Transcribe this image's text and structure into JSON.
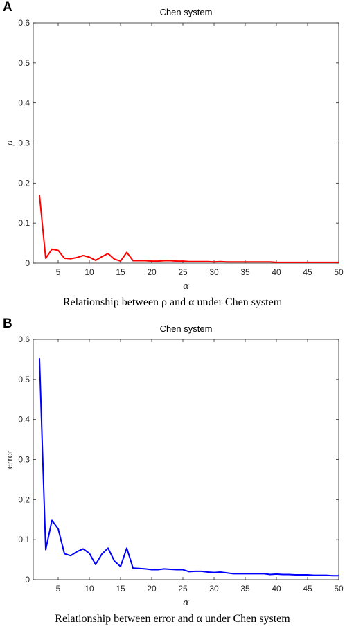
{
  "chart_data": [
    {
      "panel": "A",
      "type": "line",
      "title": "Chen system",
      "xlabel": "α",
      "ylabel": "ρ",
      "caption": "Relationship between ρ and α under Chen system",
      "xlim": [
        1,
        50
      ],
      "ylim": [
        0,
        0.6
      ],
      "xticks": [
        "5",
        "10",
        "15",
        "20",
        "25",
        "30",
        "35",
        "40",
        "45",
        "50"
      ],
      "xtick_values": [
        5,
        10,
        15,
        20,
        25,
        30,
        35,
        40,
        45,
        50
      ],
      "yticks": [
        "0",
        "0.1",
        "0.2",
        "0.3",
        "0.4",
        "0.5",
        "0.6"
      ],
      "ytick_values": [
        0,
        0.1,
        0.2,
        0.3,
        0.4,
        0.5,
        0.6
      ],
      "grid": false,
      "color": "#ff0000",
      "series": [
        {
          "x": [
            2,
            3,
            4,
            5,
            6,
            7,
            8,
            9,
            10,
            11,
            12,
            13,
            14,
            15,
            16,
            17,
            18,
            19,
            20,
            21,
            22,
            23,
            24,
            25,
            26,
            27,
            28,
            29,
            30,
            31,
            32,
            33,
            34,
            35,
            36,
            37,
            38,
            39,
            40,
            41,
            42,
            43,
            44,
            45,
            46,
            47,
            48,
            49,
            50
          ],
          "values": [
            0.17,
            0.012,
            0.035,
            0.032,
            0.012,
            0.011,
            0.014,
            0.019,
            0.015,
            0.007,
            0.016,
            0.024,
            0.01,
            0.005,
            0.027,
            0.006,
            0.006,
            0.006,
            0.005,
            0.005,
            0.006,
            0.006,
            0.005,
            0.005,
            0.004,
            0.004,
            0.004,
            0.004,
            0.003,
            0.004,
            0.003,
            0.003,
            0.003,
            0.003,
            0.003,
            0.003,
            0.003,
            0.003,
            0.002,
            0.002,
            0.002,
            0.002,
            0.002,
            0.002,
            0.002,
            0.002,
            0.002,
            0.002,
            0.002
          ]
        }
      ]
    },
    {
      "panel": "B",
      "type": "line",
      "title": "Chen system",
      "xlabel": "α",
      "ylabel": "error",
      "caption": "Relationship between error and α under Chen system",
      "xlim": [
        1,
        50
      ],
      "ylim": [
        0,
        0.6
      ],
      "xticks": [
        "5",
        "10",
        "15",
        "20",
        "25",
        "30",
        "35",
        "40",
        "45",
        "50"
      ],
      "xtick_values": [
        5,
        10,
        15,
        20,
        25,
        30,
        35,
        40,
        45,
        50
      ],
      "yticks": [
        "0",
        "0.1",
        "0.2",
        "0.3",
        "0.4",
        "0.5",
        "0.6"
      ],
      "ytick_values": [
        0,
        0.1,
        0.2,
        0.3,
        0.4,
        0.5,
        0.6
      ],
      "grid": false,
      "color": "#0000ff",
      "series": [
        {
          "x": [
            2,
            3,
            4,
            5,
            6,
            7,
            8,
            9,
            10,
            11,
            12,
            13,
            14,
            15,
            16,
            17,
            18,
            19,
            20,
            21,
            22,
            23,
            24,
            25,
            26,
            27,
            28,
            29,
            30,
            31,
            32,
            33,
            34,
            35,
            36,
            37,
            38,
            39,
            40,
            41,
            42,
            43,
            44,
            45,
            46,
            47,
            48,
            49,
            50
          ],
          "values": [
            0.553,
            0.075,
            0.148,
            0.127,
            0.065,
            0.06,
            0.07,
            0.077,
            0.066,
            0.038,
            0.064,
            0.079,
            0.047,
            0.033,
            0.079,
            0.029,
            0.028,
            0.027,
            0.025,
            0.025,
            0.027,
            0.026,
            0.025,
            0.025,
            0.02,
            0.021,
            0.021,
            0.019,
            0.018,
            0.019,
            0.017,
            0.015,
            0.015,
            0.015,
            0.015,
            0.015,
            0.015,
            0.013,
            0.014,
            0.013,
            0.013,
            0.012,
            0.012,
            0.012,
            0.011,
            0.011,
            0.011,
            0.01,
            0.01
          ]
        }
      ]
    }
  ]
}
